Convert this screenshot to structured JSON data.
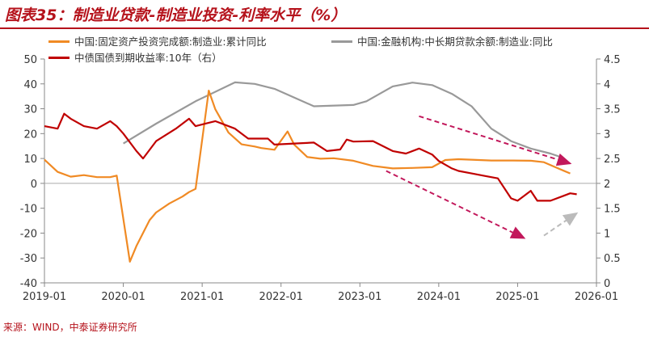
{
  "header": {
    "title": "图表35：制造业贷款-制造业投资-利率水平（%）"
  },
  "footer": {
    "source": "来源：WIND，中泰证券研究所"
  },
  "colors": {
    "title": "#b5121b",
    "investment": "#f08a24",
    "loans": "#999999",
    "yield": "#c00000",
    "arrow_down": "#c2185b",
    "arrow_up": "#bbbbbb"
  },
  "chart_data": {
    "type": "line",
    "x_ticks": [
      "2019-01",
      "2020-01",
      "2021-01",
      "2022-01",
      "2023-01",
      "2024-01",
      "2025-01",
      "2026-01"
    ],
    "y_left": {
      "min": -40,
      "max": 50,
      "ticks": [
        "50",
        "40",
        "30",
        "20",
        "10",
        "0",
        "-10",
        "-20",
        "-30",
        "-40"
      ]
    },
    "y_right": {
      "min": 0,
      "max": 4.5,
      "ticks": [
        "4.5",
        "4",
        "3.5",
        "3",
        "2.5",
        "2",
        "1.5",
        "1",
        "0.5",
        "0"
      ]
    },
    "legend_position": "top",
    "series": [
      {
        "name": "中国:固定资产投资完成额:制造业:累计同比",
        "axis": "left",
        "points": [
          [
            "2019-01",
            9.5
          ],
          [
            "2019-03",
            4.6
          ],
          [
            "2019-05",
            2.7
          ],
          [
            "2019-07",
            3.3
          ],
          [
            "2019-09",
            2.5
          ],
          [
            "2019-11",
            2.5
          ],
          [
            "2019-12",
            3.1
          ],
          [
            "2020-02",
            -31.5
          ],
          [
            "2020-03",
            -25.2
          ],
          [
            "2020-05",
            -14.8
          ],
          [
            "2020-06",
            -11.7
          ],
          [
            "2020-08",
            -8.1
          ],
          [
            "2020-10",
            -5.3
          ],
          [
            "2020-11",
            -3.5
          ],
          [
            "2020-12",
            -2.2
          ],
          [
            "2021-02",
            37.3
          ],
          [
            "2021-03",
            29.8
          ],
          [
            "2021-05",
            20.4
          ],
          [
            "2021-07",
            15.7
          ],
          [
            "2021-09",
            14.8
          ],
          [
            "2021-10",
            14.2
          ],
          [
            "2021-12",
            13.5
          ],
          [
            "2022-02",
            20.9
          ],
          [
            "2022-03",
            15.6
          ],
          [
            "2022-05",
            10.6
          ],
          [
            "2022-07",
            9.9
          ],
          [
            "2022-09",
            10.1
          ],
          [
            "2022-12",
            9.1
          ],
          [
            "2023-03",
            7.0
          ],
          [
            "2023-06",
            6.0
          ],
          [
            "2023-09",
            6.2
          ],
          [
            "2023-12",
            6.5
          ],
          [
            "2024-02",
            9.4
          ],
          [
            "2024-04",
            9.7
          ],
          [
            "2024-06",
            9.5
          ],
          [
            "2024-09",
            9.2
          ],
          [
            "2024-12",
            9.2
          ],
          [
            "2025-03",
            9.1
          ],
          [
            "2025-05",
            8.5
          ],
          [
            "2025-07",
            6.2
          ],
          [
            "2025-08",
            5.1
          ],
          [
            "2025-09",
            4.0
          ]
        ]
      },
      {
        "name": "中国:金融机构:中长期贷款余额:制造业:同比",
        "axis": "left",
        "points": [
          [
            "2020-01",
            16.0
          ],
          [
            "2020-06",
            24.0
          ],
          [
            "2020-12",
            33.0
          ],
          [
            "2021-06",
            40.6
          ],
          [
            "2021-09",
            40.0
          ],
          [
            "2021-12",
            38.0
          ],
          [
            "2022-06",
            31.0
          ],
          [
            "2022-12",
            31.5
          ],
          [
            "2023-02",
            33.0
          ],
          [
            "2023-06",
            39.0
          ],
          [
            "2023-09",
            40.5
          ],
          [
            "2023-12",
            39.5
          ],
          [
            "2024-03",
            36.0
          ],
          [
            "2024-06",
            31.0
          ],
          [
            "2024-09",
            22.0
          ],
          [
            "2024-12",
            17.0
          ],
          [
            "2025-03",
            14.0
          ],
          [
            "2025-06",
            12.0
          ],
          [
            "2025-08",
            10.2
          ]
        ]
      },
      {
        "name": "中债国债到期收益率:10年（右）",
        "axis": "right",
        "points": [
          [
            "2019-01",
            3.15
          ],
          [
            "2019-03",
            3.1
          ],
          [
            "2019-04",
            3.4
          ],
          [
            "2019-05",
            3.3
          ],
          [
            "2019-07",
            3.15
          ],
          [
            "2019-09",
            3.1
          ],
          [
            "2019-11",
            3.25
          ],
          [
            "2019-12",
            3.15
          ],
          [
            "2020-01",
            3.0
          ],
          [
            "2020-03",
            2.65
          ],
          [
            "2020-04",
            2.5
          ],
          [
            "2020-06",
            2.85
          ],
          [
            "2020-09",
            3.1
          ],
          [
            "2020-11",
            3.3
          ],
          [
            "2020-12",
            3.15
          ],
          [
            "2021-03",
            3.25
          ],
          [
            "2021-06",
            3.1
          ],
          [
            "2021-08",
            2.9
          ],
          [
            "2021-11",
            2.9
          ],
          [
            "2021-12",
            2.78
          ],
          [
            "2022-03",
            2.8
          ],
          [
            "2022-06",
            2.82
          ],
          [
            "2022-08",
            2.65
          ],
          [
            "2022-10",
            2.68
          ],
          [
            "2022-11",
            2.88
          ],
          [
            "2022-12",
            2.84
          ],
          [
            "2023-03",
            2.85
          ],
          [
            "2023-06",
            2.65
          ],
          [
            "2023-08",
            2.6
          ],
          [
            "2023-10",
            2.7
          ],
          [
            "2023-12",
            2.58
          ],
          [
            "2024-01",
            2.45
          ],
          [
            "2024-03",
            2.3
          ],
          [
            "2024-04",
            2.25
          ],
          [
            "2024-06",
            2.2
          ],
          [
            "2024-08",
            2.15
          ],
          [
            "2024-10",
            2.1
          ],
          [
            "2024-12",
            1.7
          ],
          [
            "2025-01",
            1.65
          ],
          [
            "2025-02",
            1.75
          ],
          [
            "2025-03",
            1.85
          ],
          [
            "2025-04",
            1.65
          ],
          [
            "2025-06",
            1.65
          ],
          [
            "2025-08",
            1.75
          ],
          [
            "2025-09",
            1.8
          ],
          [
            "2025-10",
            1.78
          ]
        ]
      }
    ],
    "trend_arrows": [
      {
        "style": "down",
        "from": [
          "2023-10",
          27
        ],
        "to": [
          "2025-09",
          8
        ]
      },
      {
        "style": "down",
        "from": [
          "2023-05",
          5
        ],
        "to": [
          "2025-02",
          -22
        ]
      },
      {
        "style": "up",
        "from": [
          "2025-05",
          -21
        ],
        "to": [
          "2025-10",
          -12
        ]
      }
    ]
  }
}
